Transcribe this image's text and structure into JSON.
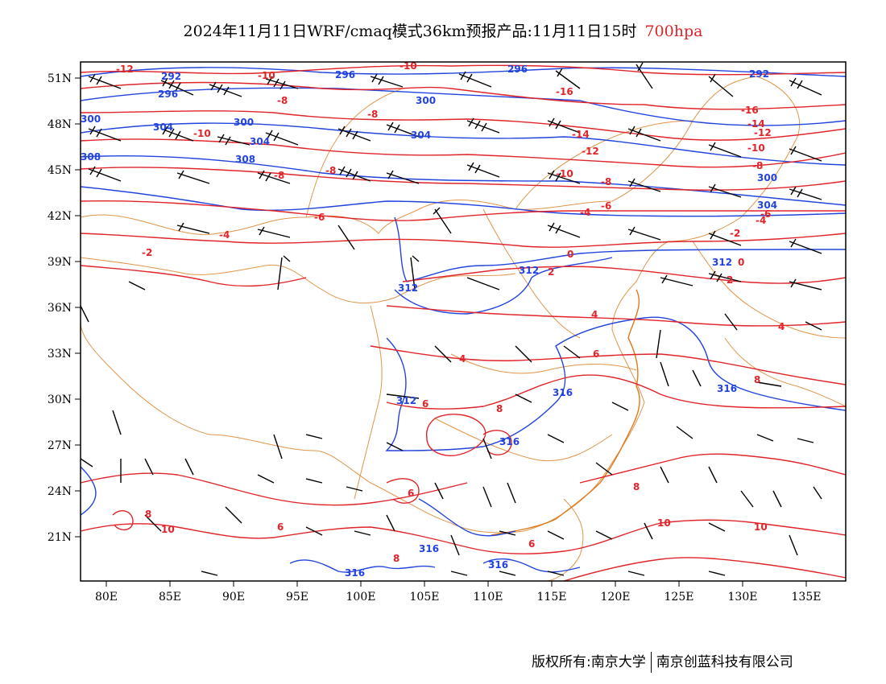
{
  "header": {
    "title": "2024年11月11日WRF/cmaq模式36km预报产品:11月11日15时",
    "level": "700hpa"
  },
  "map": {
    "lat_labels": [
      "51N",
      "48N",
      "45N",
      "42N",
      "39N",
      "36N",
      "33N",
      "30N",
      "27N",
      "24N",
      "21N"
    ],
    "lon_labels": [
      "80E",
      "85E",
      "90E",
      "95E",
      "100E",
      "105E",
      "110E",
      "115E",
      "120E",
      "125E",
      "130E",
      "135E"
    ],
    "colors": {
      "height_contour": "#2244dd",
      "temperature_contour": "#e0242a",
      "border": "#e0954a",
      "wind_barb": "#000000"
    },
    "height_labels": [
      "292",
      "296",
      "300",
      "304",
      "308",
      "312",
      "316"
    ],
    "temperature_labels": [
      "-16",
      "-14",
      "-12",
      "-10",
      "-8",
      "-6",
      "-4",
      "-2",
      "0",
      "2",
      "4",
      "6",
      "8",
      "10"
    ]
  },
  "footer": {
    "copyright": "版权所有:南京大学",
    "company": "南京创蓝科技有限公司"
  }
}
